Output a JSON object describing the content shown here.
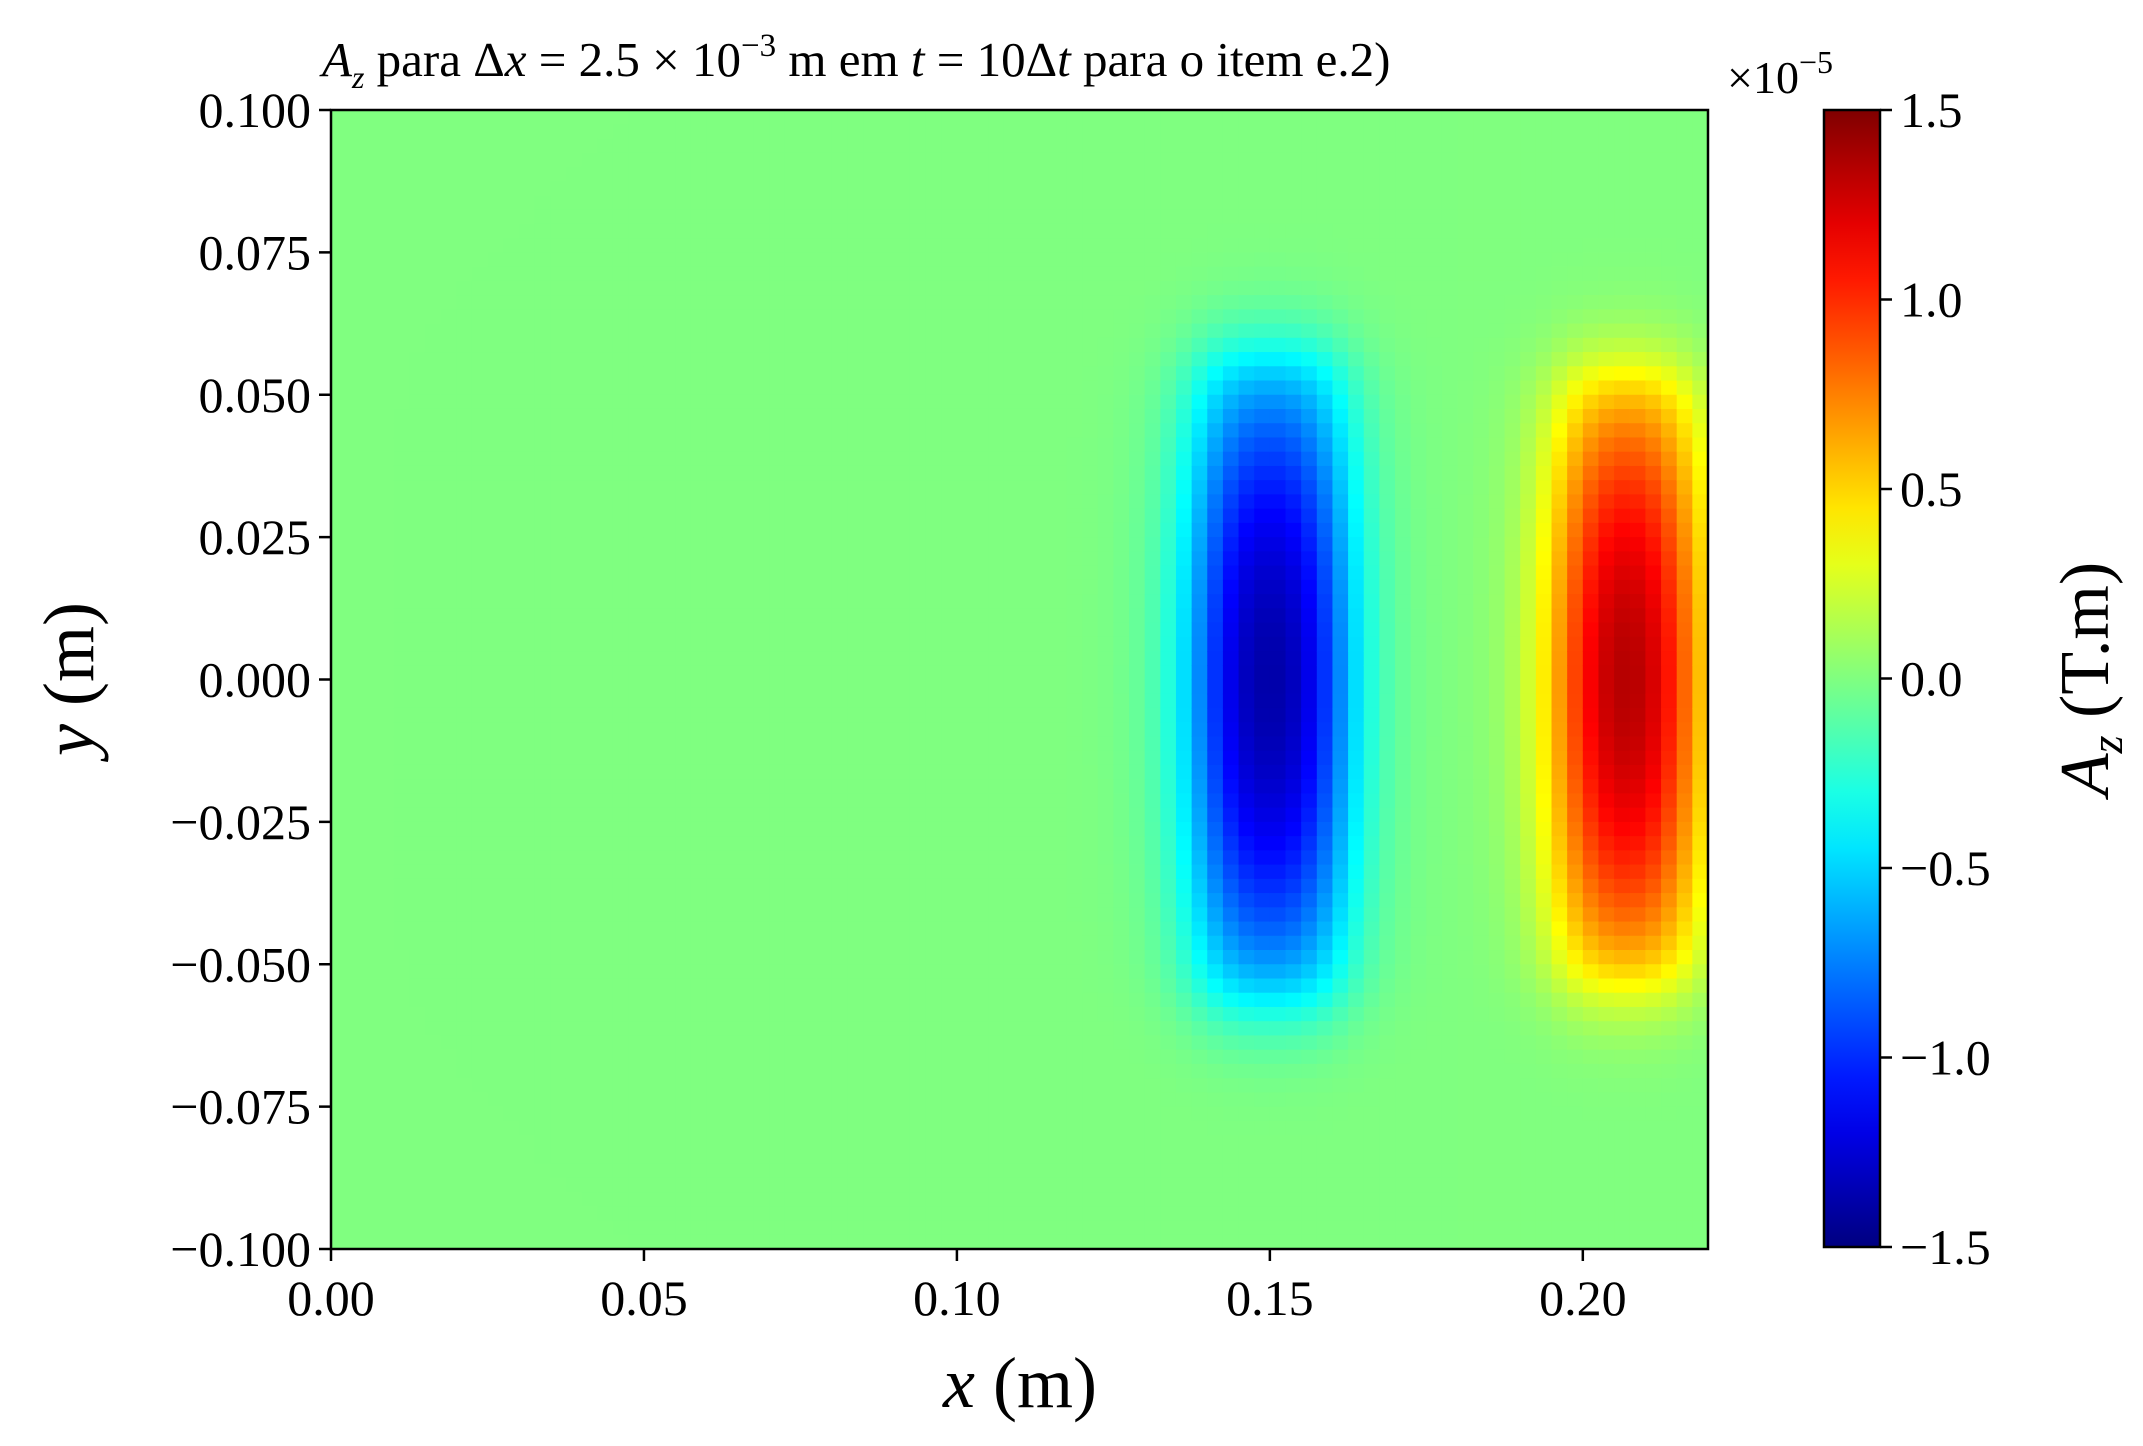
{
  "chart_data": {
    "type": "heatmap",
    "colormap": "jet",
    "title": {
      "var": "A",
      "var_sub": "z",
      "t1": " para ",
      "delta": "Δ",
      "dx_var": "x",
      "eq1": " = 2.5 × 10",
      "exp": "−3",
      "t2": " m em ",
      "t_var": "t",
      "eq2": " = 10",
      "delta2": "Δ",
      "t_var2": "t",
      "t3": " para o item e.2)"
    },
    "xlabel": {
      "var": "x",
      "unit": " (m)"
    },
    "ylabel": {
      "var": "y",
      "unit": " (m)"
    },
    "xlim": [
      0.0,
      0.22
    ],
    "ylim": [
      -0.1,
      0.1
    ],
    "x_ticks": [
      0.0,
      0.05,
      0.1,
      0.15,
      0.2
    ],
    "x_tick_labels": [
      "0.00",
      "0.05",
      "0.10",
      "0.15",
      "0.20"
    ],
    "y_ticks": [
      0.1,
      0.075,
      0.05,
      0.025,
      0.0,
      -0.025,
      -0.05,
      -0.075,
      -0.1
    ],
    "y_tick_labels": [
      "0.100",
      "0.075",
      "0.050",
      "0.025",
      "0.000",
      "−0.025",
      "−0.050",
      "−0.075",
      "−0.100"
    ],
    "grid": false,
    "colorbar": {
      "label_var": "A",
      "label_sub": "z",
      "label_unit": " (T.m)",
      "offset_text": "×10",
      "offset_exp": "−5",
      "range": [
        -1.5,
        1.5
      ],
      "ticks": [
        1.5,
        1.0,
        0.5,
        0.0,
        -0.5,
        -1.0,
        -1.5
      ],
      "tick_labels": [
        "1.5",
        "1.0",
        "0.5",
        "0.0",
        "−0.5",
        "−1.0",
        "−1.5"
      ],
      "scale": 1e-05
    },
    "field_features": [
      {
        "name": "negative region",
        "x_range": [
          0.139,
          0.161
        ],
        "y_range": [
          -0.06,
          0.06
        ],
        "peak": -1.5e-05,
        "peak_at": [
          0.15,
          0.0
        ]
      },
      {
        "name": "positive region",
        "x_range": [
          0.197,
          0.217
        ],
        "y_range": [
          -0.057,
          0.057
        ],
        "peak": 1.5e-05,
        "peak_at": [
          0.207,
          0.0
        ]
      }
    ]
  }
}
